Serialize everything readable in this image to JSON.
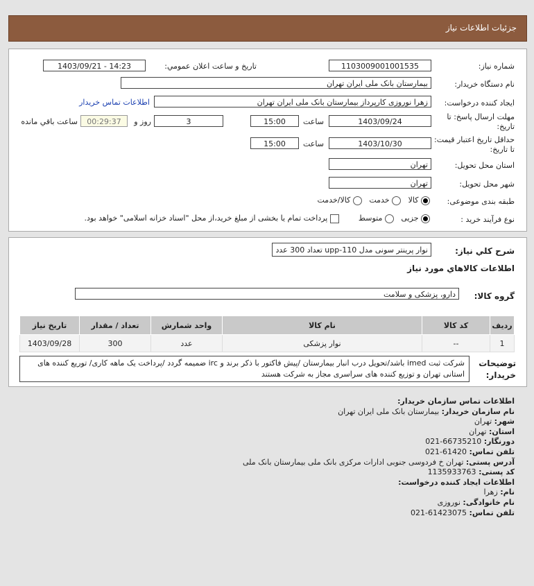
{
  "header": {
    "title": "جزئیات اطلاعات نیاز"
  },
  "form": {
    "need_number_label": "شماره نیاز:",
    "need_number": "1103009001001535",
    "announce_label": "تاريخ و ساعت اعلان عمومي:",
    "announce_value": "1403/09/21 - 14:23",
    "buyer_label": "نام دستگاه خریدار:",
    "buyer": "بیمارستان بانک ملی ایران تهران",
    "creator_label": "ایجاد کننده درخواست:",
    "creator": "زهرا نوروزی کارپرداز بیمارستان بانک ملی ایران تهران",
    "contact_link": "اطلاعات تماس خریدار",
    "deadline_label": "مهلت ارسال پاسخ: تا تاریخ:",
    "deadline_date": "1403/09/24",
    "time_label": "ساعت",
    "deadline_time": "15:00",
    "days": "3",
    "days_label": "روز و",
    "remaining": "00:29:37",
    "remaining_label": "ساعت باقي مانده",
    "validity_label": "حداقل تاریخ اعتبار قیمت: تا تاریخ:",
    "validity_date": "1403/10/30",
    "validity_time": "15:00",
    "province_label": "استان محل تحویل:",
    "province": "تهران",
    "city_label": "شهر محل تحویل:",
    "city": "تهران",
    "category_label": "طبقه بندی موضوعی:",
    "category_options": [
      "کالا",
      "خدمت",
      "کالا/خدمت"
    ],
    "category_selected": "کالا",
    "process_label": "نوع فرآیند خرید :",
    "process_options": [
      "جزیی",
      "متوسط"
    ],
    "process_selected": "جزیی",
    "payment_note": "پرداخت تمام یا بخشی از مبلغ خرید،از محل \"اسناد خزانه اسلامی\" خواهد بود."
  },
  "summary": {
    "desc_label": "شرح کلي نياز:",
    "desc": "نوار پرینتر سونی مدل upp-110 تعداد 300 عدد",
    "goods_title": "اطلاعات کالاهاي مورد نياز",
    "group_label": "گروه کالا:",
    "group": "دارو، پزشکی و سلامت",
    "table": {
      "headers": [
        "رديف",
        "کد کالا",
        "نام کالا",
        "واحد شمارش",
        "تعداد / مقدار",
        "تاريخ نياز"
      ],
      "rows": [
        [
          "1",
          "--",
          "نوار پزشکی",
          "عدد",
          "300",
          "1403/09/28"
        ]
      ]
    },
    "notes_label": "توضیحات خریدار:",
    "notes": "شرکت ثبت imed باشد/تحویل درب انبار بیمارستان /پیش فاکتور با ذکر برند و irc ضمیمه گردد /پرداخت یک ماهه کاری/ توریع کننده های استانی تهران و توزیع کننده های سراسری مجاز به شرکت هستند"
  },
  "contact": {
    "title": "اطلاعات تماس سازمان خریدار:",
    "org_label": "نام سازمان خریدار:",
    "org": "بیمارستان بانک ملی ایران تهران",
    "city_label": "شهر:",
    "city": "تهران",
    "province_label": "استان:",
    "province": "تهران",
    "fax_label": "دورنگار:",
    "fax": "66735210-021",
    "phone_label": "تلفن تماس:",
    "phone": "61420-021",
    "address_label": "آدرس پستی:",
    "address": "تهران خ فردوسی جنوبی ادارات مرکزی بانک ملی بیمارستان بانک ملی",
    "postal_label": "کد پستی:",
    "postal": "1135933763",
    "creator_title": "اطلاعات ایجاد کننده درخواست:",
    "name_label": "نام:",
    "name": "زهرا",
    "family_label": "نام خانوادگی:",
    "family": "نوروزی",
    "creator_phone_label": "تلفن تماس:",
    "creator_phone": "61423075-021"
  }
}
